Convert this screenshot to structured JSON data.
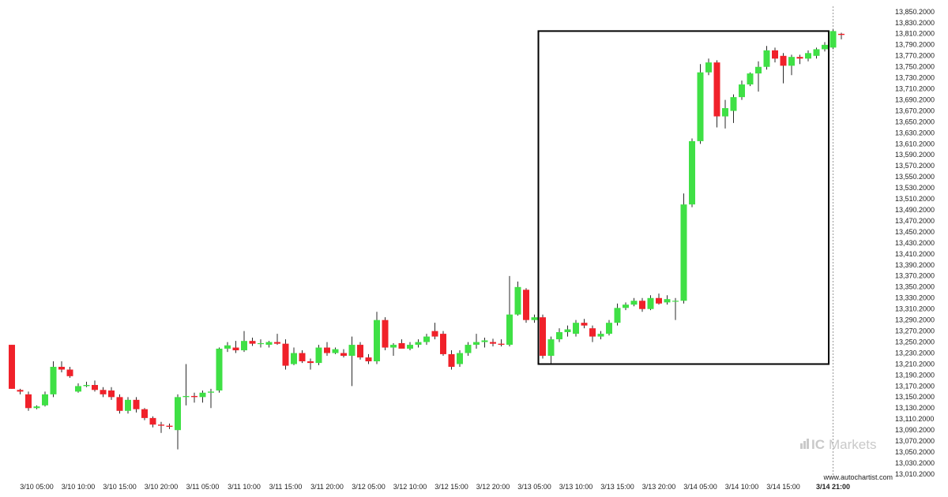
{
  "chart_data": {
    "type": "candlestick",
    "title": "",
    "xlabel": "",
    "ylabel": "",
    "ylim": [
      13000,
      13860
    ],
    "grid": false,
    "y_ticks": [
      "13,010.2000",
      "13,030.2000",
      "13,050.2000",
      "13,070.2000",
      "13,090.2000",
      "13,110.2000",
      "13,130.2000",
      "13,150.2000",
      "13,170.2000",
      "13,190.2000",
      "13,210.2000",
      "13,230.2000",
      "13,250.2000",
      "13,270.2000",
      "13,290.2000",
      "13,310.2000",
      "13,330.2000",
      "13,350.2000",
      "13,370.2000",
      "13,390.2000",
      "13,410.2000",
      "13,430.2000",
      "13,450.2000",
      "13,470.2000",
      "13,490.2000",
      "13,510.2000",
      "13,530.2000",
      "13,550.2000",
      "13,570.2000",
      "13,590.2000",
      "13,610.2000",
      "13,630.2000",
      "13,650.2000",
      "13,670.2000",
      "13,690.2000",
      "13,710.2000",
      "13,730.2000",
      "13,750.2000",
      "13,770.2000",
      "13,790.2000",
      "13,810.2000",
      "13,830.2000",
      "13,850.2000"
    ],
    "x_ticks": [
      {
        "label": "3/10 05:00",
        "bar": 3
      },
      {
        "label": "3/10 10:00",
        "bar": 8
      },
      {
        "label": "3/10 15:00",
        "bar": 13
      },
      {
        "label": "3/10 20:00",
        "bar": 18
      },
      {
        "label": "3/11 05:00",
        "bar": 23
      },
      {
        "label": "3/11 10:00",
        "bar": 28
      },
      {
        "label": "3/11 15:00",
        "bar": 33
      },
      {
        "label": "3/11 20:00",
        "bar": 38
      },
      {
        "label": "3/12 05:00",
        "bar": 43
      },
      {
        "label": "3/12 10:00",
        "bar": 48
      },
      {
        "label": "3/12 15:00",
        "bar": 53
      },
      {
        "label": "3/12 20:00",
        "bar": 58
      },
      {
        "label": "3/13 05:00",
        "bar": 63
      },
      {
        "label": "3/13 10:00",
        "bar": 68
      },
      {
        "label": "3/13 15:00",
        "bar": 73
      },
      {
        "label": "3/13 20:00",
        "bar": 78
      },
      {
        "label": "3/14 05:00",
        "bar": 83
      },
      {
        "label": "3/14 10:00",
        "bar": 88
      },
      {
        "label": "3/14 15:00",
        "bar": 93
      },
      {
        "label": "3/14 21:00",
        "bar": 99
      }
    ],
    "highlight_range": {
      "start_bar": 64,
      "end_bar": 98,
      "low": 13210,
      "high": 13815
    },
    "series": [
      {
        "values": [
          {
            "o": 13245,
            "h": 13245,
            "l": 13165,
            "c": 13165
          },
          {
            "o": 13163,
            "h": 13165,
            "l": 13155,
            "c": 13160
          },
          {
            "o": 13155,
            "h": 13160,
            "l": 13125,
            "c": 13130
          },
          {
            "o": 13130,
            "h": 13135,
            "l": 13128,
            "c": 13133
          },
          {
            "o": 13135,
            "h": 13160,
            "l": 13133,
            "c": 13155
          },
          {
            "o": 13155,
            "h": 13215,
            "l": 13150,
            "c": 13205
          },
          {
            "o": 13205,
            "h": 13215,
            "l": 13195,
            "c": 13200
          },
          {
            "o": 13200,
            "h": 13205,
            "l": 13185,
            "c": 13188
          },
          {
            "o": 13160,
            "h": 13175,
            "l": 13158,
            "c": 13170
          },
          {
            "o": 13170,
            "h": 13178,
            "l": 13168,
            "c": 13172
          },
          {
            "o": 13172,
            "h": 13180,
            "l": 13160,
            "c": 13163
          },
          {
            "o": 13163,
            "h": 13168,
            "l": 13150,
            "c": 13155
          },
          {
            "o": 13162,
            "h": 13168,
            "l": 13145,
            "c": 13150
          },
          {
            "o": 13150,
            "h": 13155,
            "l": 13120,
            "c": 13125
          },
          {
            "o": 13125,
            "h": 13150,
            "l": 13120,
            "c": 13145
          },
          {
            "o": 13145,
            "h": 13150,
            "l": 13122,
            "c": 13128
          },
          {
            "o": 13128,
            "h": 13130,
            "l": 13108,
            "c": 13112
          },
          {
            "o": 13112,
            "h": 13115,
            "l": 13095,
            "c": 13100
          },
          {
            "o": 13100,
            "h": 13105,
            "l": 13085,
            "c": 13098
          },
          {
            "o": 13098,
            "h": 13102,
            "l": 13092,
            "c": 13096
          },
          {
            "o": 13090,
            "h": 13155,
            "l": 13055,
            "c": 13150
          },
          {
            "o": 13150,
            "h": 13210,
            "l": 13135,
            "c": 13152
          },
          {
            "o": 13152,
            "h": 13158,
            "l": 13140,
            "c": 13150
          },
          {
            "o": 13150,
            "h": 13162,
            "l": 13140,
            "c": 13158
          },
          {
            "o": 13158,
            "h": 13165,
            "l": 13130,
            "c": 13160
          },
          {
            "o": 13162,
            "h": 13240,
            "l": 13158,
            "c": 13238
          },
          {
            "o": 13238,
            "h": 13250,
            "l": 13232,
            "c": 13244
          },
          {
            "o": 13240,
            "h": 13252,
            "l": 13230,
            "c": 13235
          },
          {
            "o": 13235,
            "h": 13270,
            "l": 13232,
            "c": 13252
          },
          {
            "o": 13252,
            "h": 13258,
            "l": 13243,
            "c": 13247
          },
          {
            "o": 13247,
            "h": 13255,
            "l": 13240,
            "c": 13248
          },
          {
            "o": 13245,
            "h": 13252,
            "l": 13240,
            "c": 13250
          },
          {
            "o": 13250,
            "h": 13265,
            "l": 13245,
            "c": 13247
          },
          {
            "o": 13247,
            "h": 13255,
            "l": 13200,
            "c": 13207
          },
          {
            "o": 13210,
            "h": 13240,
            "l": 13208,
            "c": 13230
          },
          {
            "o": 13230,
            "h": 13235,
            "l": 13212,
            "c": 13215
          },
          {
            "o": 13215,
            "h": 13220,
            "l": 13200,
            "c": 13212
          },
          {
            "o": 13212,
            "h": 13245,
            "l": 13208,
            "c": 13240
          },
          {
            "o": 13240,
            "h": 13250,
            "l": 13225,
            "c": 13230
          },
          {
            "o": 13230,
            "h": 13240,
            "l": 13228,
            "c": 13237
          },
          {
            "o": 13230,
            "h": 13237,
            "l": 13222,
            "c": 13225
          },
          {
            "o": 13225,
            "h": 13260,
            "l": 13170,
            "c": 13245
          },
          {
            "o": 13245,
            "h": 13250,
            "l": 13218,
            "c": 13222
          },
          {
            "o": 13222,
            "h": 13228,
            "l": 13210,
            "c": 13215
          },
          {
            "o": 13215,
            "h": 13305,
            "l": 13210,
            "c": 13290
          },
          {
            "o": 13290,
            "h": 13295,
            "l": 13235,
            "c": 13240
          },
          {
            "o": 13240,
            "h": 13248,
            "l": 13225,
            "c": 13245
          },
          {
            "o": 13248,
            "h": 13255,
            "l": 13240,
            "c": 13238
          },
          {
            "o": 13238,
            "h": 13250,
            "l": 13235,
            "c": 13245
          },
          {
            "o": 13245,
            "h": 13255,
            "l": 13240,
            "c": 13250
          },
          {
            "o": 13250,
            "h": 13265,
            "l": 13245,
            "c": 13260
          },
          {
            "o": 13270,
            "h": 13285,
            "l": 13255,
            "c": 13260
          },
          {
            "o": 13265,
            "h": 13270,
            "l": 13225,
            "c": 13228
          },
          {
            "o": 13228,
            "h": 13235,
            "l": 13200,
            "c": 13205
          },
          {
            "o": 13210,
            "h": 13235,
            "l": 13205,
            "c": 13230
          },
          {
            "o": 13230,
            "h": 13250,
            "l": 13225,
            "c": 13245
          },
          {
            "o": 13245,
            "h": 13265,
            "l": 13238,
            "c": 13250
          },
          {
            "o": 13250,
            "h": 13258,
            "l": 13240,
            "c": 13253
          },
          {
            "o": 13250,
            "h": 13256,
            "l": 13242,
            "c": 13247
          },
          {
            "o": 13247,
            "h": 13255,
            "l": 13242,
            "c": 13245
          },
          {
            "o": 13245,
            "h": 13370,
            "l": 13242,
            "c": 13300
          },
          {
            "o": 13300,
            "h": 13360,
            "l": 13298,
            "c": 13350
          },
          {
            "o": 13345,
            "h": 13348,
            "l": 13285,
            "c": 13290
          },
          {
            "o": 13290,
            "h": 13300,
            "l": 13285,
            "c": 13295
          },
          {
            "o": 13295,
            "h": 13300,
            "l": 13220,
            "c": 13225
          },
          {
            "o": 13225,
            "h": 13260,
            "l": 13210,
            "c": 13255
          },
          {
            "o": 13255,
            "h": 13275,
            "l": 13250,
            "c": 13268
          },
          {
            "o": 13268,
            "h": 13280,
            "l": 13260,
            "c": 13273
          },
          {
            "o": 13265,
            "h": 13290,
            "l": 13260,
            "c": 13285
          },
          {
            "o": 13285,
            "h": 13292,
            "l": 13275,
            "c": 13280
          },
          {
            "o": 13275,
            "h": 13280,
            "l": 13250,
            "c": 13260
          },
          {
            "o": 13260,
            "h": 13270,
            "l": 13255,
            "c": 13265
          },
          {
            "o": 13265,
            "h": 13290,
            "l": 13262,
            "c": 13285
          },
          {
            "o": 13285,
            "h": 13320,
            "l": 13280,
            "c": 13312
          },
          {
            "o": 13312,
            "h": 13322,
            "l": 13308,
            "c": 13318
          },
          {
            "o": 13318,
            "h": 13330,
            "l": 13315,
            "c": 13325
          },
          {
            "o": 13325,
            "h": 13330,
            "l": 13305,
            "c": 13310
          },
          {
            "o": 13310,
            "h": 13335,
            "l": 13308,
            "c": 13330
          },
          {
            "o": 13330,
            "h": 13338,
            "l": 13318,
            "c": 13320
          },
          {
            "o": 13322,
            "h": 13335,
            "l": 13318,
            "c": 13328
          },
          {
            "o": 13325,
            "h": 13330,
            "l": 13290,
            "c": 13325
          },
          {
            "o": 13325,
            "h": 13520,
            "l": 13320,
            "c": 13500
          },
          {
            "o": 13500,
            "h": 13620,
            "l": 13495,
            "c": 13615
          },
          {
            "o": 13615,
            "h": 13755,
            "l": 13610,
            "c": 13740
          },
          {
            "o": 13740,
            "h": 13765,
            "l": 13735,
            "c": 13758
          },
          {
            "o": 13758,
            "h": 13762,
            "l": 13640,
            "c": 13660
          },
          {
            "o": 13660,
            "h": 13690,
            "l": 13638,
            "c": 13675
          },
          {
            "o": 13670,
            "h": 13700,
            "l": 13648,
            "c": 13695
          },
          {
            "o": 13695,
            "h": 13725,
            "l": 13690,
            "c": 13718
          },
          {
            "o": 13718,
            "h": 13740,
            "l": 13715,
            "c": 13738
          },
          {
            "o": 13738,
            "h": 13760,
            "l": 13705,
            "c": 13750
          },
          {
            "o": 13750,
            "h": 13788,
            "l": 13745,
            "c": 13780
          },
          {
            "o": 13780,
            "h": 13785,
            "l": 13758,
            "c": 13765
          },
          {
            "o": 13770,
            "h": 13775,
            "l": 13720,
            "c": 13752
          },
          {
            "o": 13752,
            "h": 13772,
            "l": 13735,
            "c": 13768
          },
          {
            "o": 13768,
            "h": 13772,
            "l": 13755,
            "c": 13765
          },
          {
            "o": 13765,
            "h": 13780,
            "l": 13760,
            "c": 13775
          },
          {
            "o": 13770,
            "h": 13785,
            "l": 13765,
            "c": 13782
          },
          {
            "o": 13782,
            "h": 13795,
            "l": 13778,
            "c": 13790
          },
          {
            "o": 13785,
            "h": 13818,
            "l": 13782,
            "c": 13815
          },
          {
            "o": 13810,
            "h": 13812,
            "l": 13800,
            "c": 13808
          }
        ]
      }
    ]
  },
  "colors": {
    "up": "#3fe045",
    "down": "#f0212a",
    "wick": "#2a2a2a",
    "box": "#000000",
    "vline": "#9a9a9a",
    "axis_text": "#222222",
    "brand": "#c9c9c9"
  },
  "watermark": {
    "site": "www.autochartist.com"
  },
  "brand": {
    "name_ic": "IC",
    "name_markets": "Markets"
  }
}
